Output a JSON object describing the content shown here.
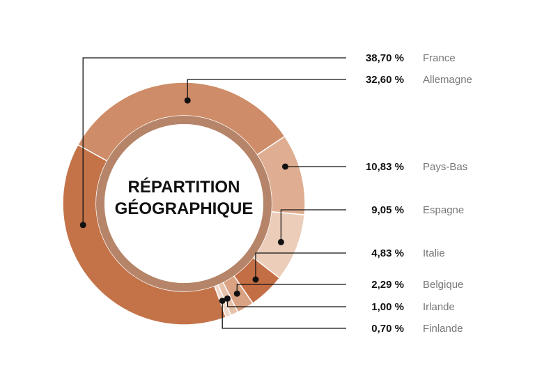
{
  "chart_data": {
    "type": "pie",
    "title_lines": [
      "RÉPARTITION",
      "GÉOGRAPHIQUE"
    ],
    "slices": [
      {
        "label": "France",
        "value": 38.7,
        "value_label": "38,70 %",
        "color": "#c47349"
      },
      {
        "label": "Allemagne",
        "value": 32.6,
        "value_label": "32,60 %",
        "color": "#cf8c68"
      },
      {
        "label": "Pays-Bas",
        "value": 10.83,
        "value_label": "10,83 %",
        "color": "#dfae92"
      },
      {
        "label": "Espagne",
        "value": 9.05,
        "value_label": "9,05 %",
        "color": "#ebcdb9"
      },
      {
        "label": "Italie",
        "value": 4.83,
        "value_label": "4,83 %",
        "color": "#c46e46"
      },
      {
        "label": "Belgique",
        "value": 2.29,
        "value_label": "2,29 %",
        "color": "#d9a283"
      },
      {
        "label": "Irlande",
        "value": 1.0,
        "value_label": "1,00 %",
        "color": "#e7c2ab"
      },
      {
        "label": "Finlande",
        "value": 0.7,
        "value_label": "0,70 %",
        "color": "#efd8c8"
      }
    ],
    "legend_placement": "right",
    "inner_ring_color": "#a9704f"
  }
}
